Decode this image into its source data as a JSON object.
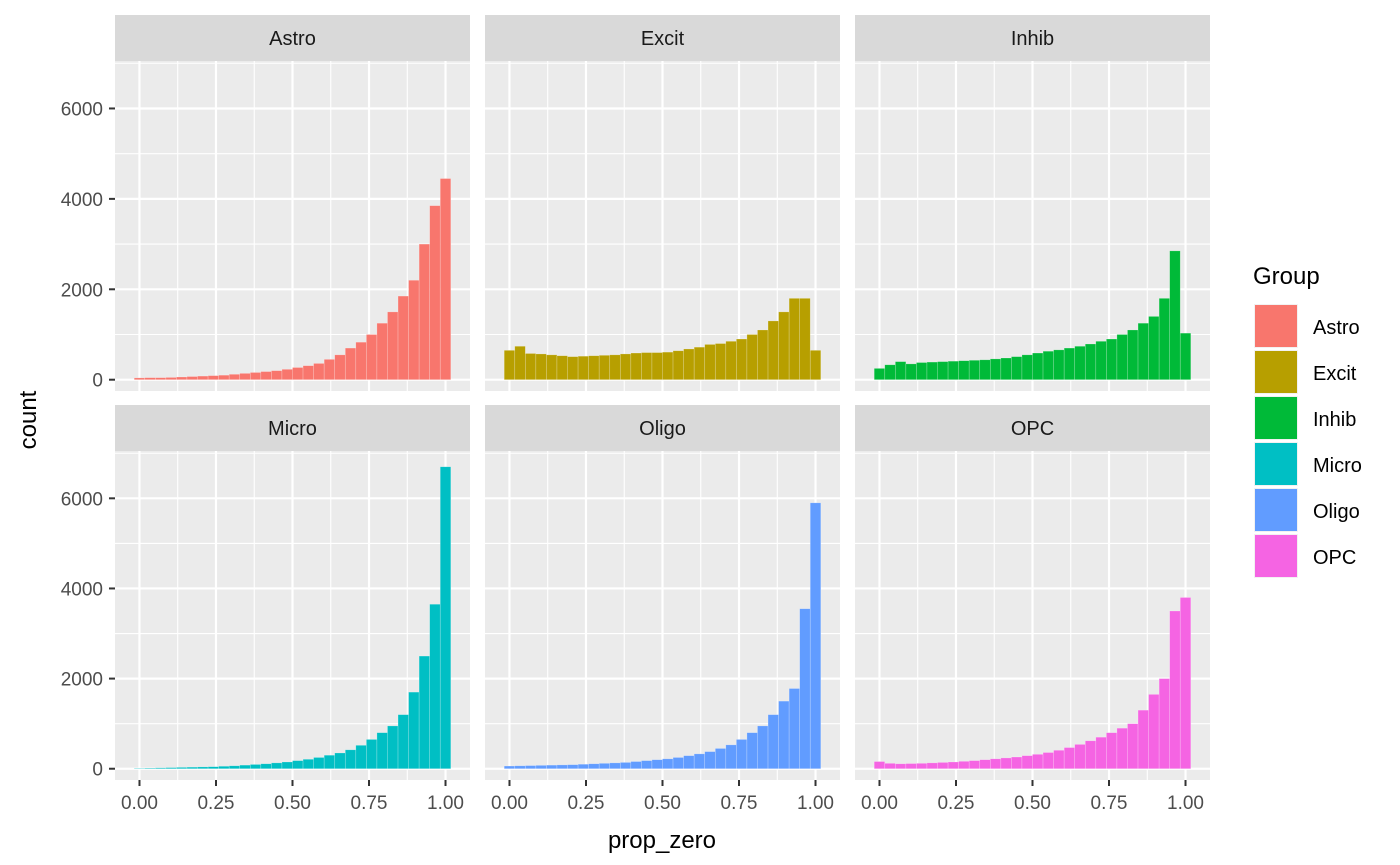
{
  "chart_data": {
    "type": "bar",
    "subtype": "faceted-histogram",
    "xlabel": "prop_zero",
    "ylabel": "count",
    "xlim": [
      -0.08,
      1.08
    ],
    "ylim": [
      -250,
      7050
    ],
    "x_ticks": [
      "0.00",
      "0.25",
      "0.50",
      "0.75",
      "1.00"
    ],
    "y_ticks": [
      "0",
      "2000",
      "4000",
      "6000"
    ],
    "grid": true,
    "legend": {
      "title": "Group",
      "position": "right",
      "entries": [
        {
          "name": "Astro",
          "color": "#F8766D"
        },
        {
          "name": "Excit",
          "color": "#B79F00"
        },
        {
          "name": "Inhib",
          "color": "#00BA38"
        },
        {
          "name": "Micro",
          "color": "#00BFC4"
        },
        {
          "name": "Oligo",
          "color": "#619CFF"
        },
        {
          "name": "OPC",
          "color": "#F564E3"
        }
      ]
    },
    "bin_centers": [
      0.0,
      0.0345,
      0.069,
      0.1034,
      0.1379,
      0.1724,
      0.2069,
      0.2414,
      0.2759,
      0.3103,
      0.3448,
      0.3793,
      0.4138,
      0.4483,
      0.4828,
      0.5172,
      0.5517,
      0.5862,
      0.6207,
      0.6552,
      0.6897,
      0.7241,
      0.7586,
      0.7931,
      0.8276,
      0.8621,
      0.8966,
      0.931,
      0.9655,
      1.0
    ],
    "facets": [
      {
        "name": "Astro",
        "color": "#F8766D",
        "values": [
          40,
          45,
          45,
          50,
          60,
          70,
          80,
          90,
          100,
          120,
          140,
          160,
          180,
          200,
          230,
          270,
          310,
          360,
          450,
          550,
          700,
          830,
          1000,
          1250,
          1500,
          1850,
          2200,
          3000,
          3850,
          4450
        ]
      },
      {
        "name": "Excit",
        "color": "#B79F00",
        "values": [
          650,
          740,
          580,
          570,
          550,
          530,
          510,
          520,
          530,
          540,
          550,
          570,
          590,
          600,
          600,
          610,
          640,
          680,
          720,
          780,
          800,
          850,
          900,
          1000,
          1100,
          1300,
          1500,
          1800,
          1800,
          650
        ]
      },
      {
        "name": "Inhib",
        "color": "#00BA38",
        "values": [
          250,
          330,
          400,
          350,
          380,
          390,
          400,
          410,
          420,
          430,
          440,
          460,
          480,
          510,
          550,
          590,
          630,
          660,
          700,
          740,
          790,
          850,
          900,
          1000,
          1100,
          1250,
          1400,
          1800,
          2850,
          1030
        ]
      },
      {
        "name": "Micro",
        "color": "#00BFC4",
        "values": [
          10,
          15,
          20,
          25,
          30,
          35,
          40,
          45,
          55,
          65,
          80,
          95,
          110,
          130,
          150,
          180,
          210,
          250,
          300,
          350,
          420,
          520,
          650,
          800,
          950,
          1200,
          1700,
          2500,
          3650,
          6700
        ]
      },
      {
        "name": "Oligo",
        "color": "#619CFF",
        "values": [
          60,
          65,
          70,
          75,
          80,
          85,
          90,
          100,
          110,
          120,
          130,
          140,
          160,
          180,
          200,
          220,
          250,
          290,
          330,
          380,
          450,
          530,
          650,
          800,
          950,
          1200,
          1500,
          1780,
          3550,
          5900
        ]
      },
      {
        "name": "OPC",
        "color": "#F564E3",
        "values": [
          160,
          120,
          110,
          115,
          120,
          130,
          140,
          150,
          165,
          180,
          200,
          220,
          240,
          260,
          290,
          320,
          360,
          410,
          470,
          540,
          620,
          700,
          800,
          900,
          1000,
          1300,
          1650,
          2000,
          3500,
          3800
        ]
      }
    ]
  }
}
